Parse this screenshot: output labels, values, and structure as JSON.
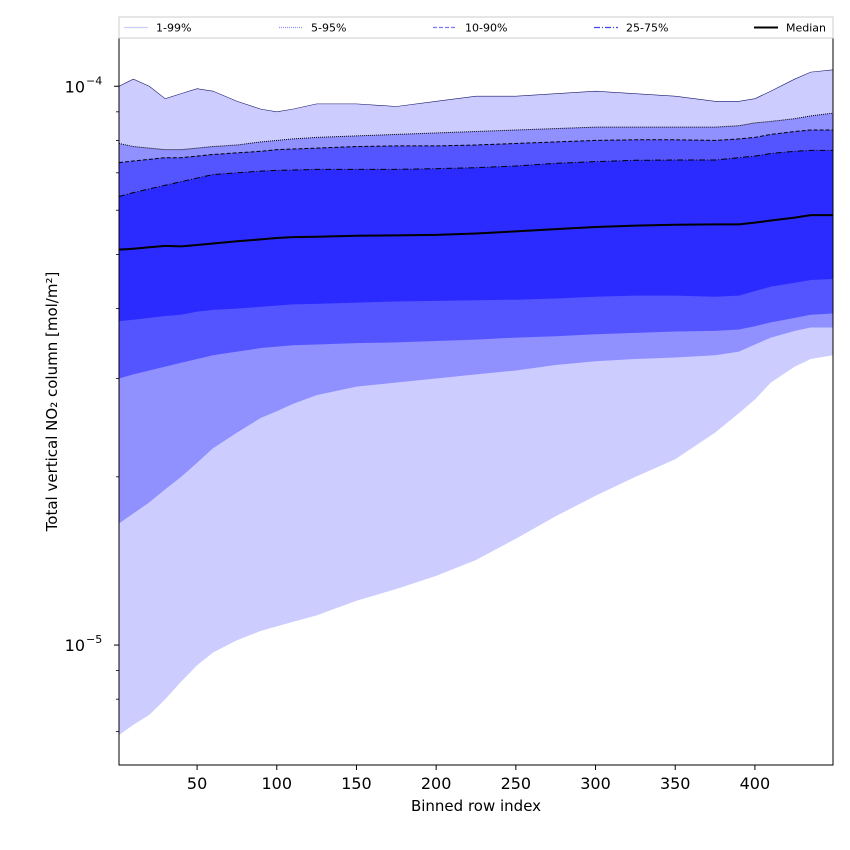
{
  "chart_data": {
    "type": "area",
    "xlabel": "Binned row index",
    "ylabel": "Total vertical NO₂ column [mol/m²]",
    "xlim": [
      1,
      449
    ],
    "ylim": [
      6.1e-06,
      0.000122
    ],
    "yscale": "log",
    "xticks": [
      50,
      100,
      150,
      200,
      250,
      300,
      350,
      400
    ],
    "yticks": [
      {
        "value": 1e-05,
        "base": "10",
        "exp": "−5"
      },
      {
        "value": 0.0001,
        "base": "10",
        "exp": "−4"
      }
    ],
    "legend": {
      "placement": "top",
      "entries": [
        {
          "label": "1-99%",
          "color": "#ccccff",
          "style": "solid"
        },
        {
          "label": "5-95%",
          "color": "#9090ff",
          "style": "dotted"
        },
        {
          "label": "10-90%",
          "color": "#7a7aff",
          "style": "dashed"
        },
        {
          "label": "25-75%",
          "color": "#4444ee",
          "style": "dashdot"
        },
        {
          "label": "Median",
          "color": "#000000",
          "style": "solid-thick"
        }
      ]
    },
    "x": [
      1,
      10,
      20,
      30,
      40,
      50,
      60,
      75,
      90,
      100,
      110,
      125,
      150,
      175,
      200,
      225,
      250,
      275,
      300,
      325,
      350,
      375,
      390,
      400,
      410,
      425,
      435,
      449
    ],
    "bands": [
      {
        "name": "1-99%",
        "color": "#ccccff",
        "lower": [
          6.9e-06,
          7.2e-06,
          7.5e-06,
          8e-06,
          8.6e-06,
          9.2e-06,
          9.7e-06,
          1.02e-05,
          1.06e-05,
          1.08e-05,
          1.1e-05,
          1.13e-05,
          1.2e-05,
          1.26e-05,
          1.33e-05,
          1.42e-05,
          1.55e-05,
          1.7e-05,
          1.85e-05,
          2e-05,
          2.15e-05,
          2.4e-05,
          2.6e-05,
          2.75e-05,
          2.95e-05,
          3.15e-05,
          3.25e-05,
          3.3e-05
        ],
        "upper": [
          0.0001,
          0.000103,
          0.0001,
          9.5e-05,
          9.7e-05,
          9.9e-05,
          9.8e-05,
          9.4e-05,
          9.1e-05,
          9e-05,
          9.1e-05,
          9.3e-05,
          9.3e-05,
          9.2e-05,
          9.4e-05,
          9.6e-05,
          9.6e-05,
          9.7e-05,
          9.8e-05,
          9.7e-05,
          9.6e-05,
          9.4e-05,
          9.4e-05,
          9.5e-05,
          9.8e-05,
          0.000103,
          0.000106,
          0.000107
        ]
      },
      {
        "name": "5-95%",
        "color": "#9090ff",
        "lower": [
          1.65e-05,
          1.72e-05,
          1.8e-05,
          1.9e-05,
          2e-05,
          2.12e-05,
          2.25e-05,
          2.4e-05,
          2.55e-05,
          2.62e-05,
          2.7e-05,
          2.8e-05,
          2.9e-05,
          2.95e-05,
          3e-05,
          3.05e-05,
          3.1e-05,
          3.17e-05,
          3.22e-05,
          3.25e-05,
          3.27e-05,
          3.3e-05,
          3.35e-05,
          3.45e-05,
          3.55e-05,
          3.65e-05,
          3.7e-05,
          3.7e-05
        ],
        "upper": [
          7.9e-05,
          7.8e-05,
          7.75e-05,
          7.7e-05,
          7.7e-05,
          7.75e-05,
          7.8e-05,
          7.85e-05,
          7.95e-05,
          8e-05,
          8.05e-05,
          8.1e-05,
          8.15e-05,
          8.2e-05,
          8.25e-05,
          8.3e-05,
          8.35e-05,
          8.4e-05,
          8.45e-05,
          8.45e-05,
          8.45e-05,
          8.45e-05,
          8.5e-05,
          8.6e-05,
          8.65e-05,
          8.75e-05,
          8.85e-05,
          8.95e-05
        ]
      },
      {
        "name": "10-90%",
        "color": "#5555ff",
        "lower": [
          3e-05,
          3.05e-05,
          3.1e-05,
          3.15e-05,
          3.2e-05,
          3.25e-05,
          3.3e-05,
          3.35e-05,
          3.4e-05,
          3.42e-05,
          3.44e-05,
          3.45e-05,
          3.47e-05,
          3.48e-05,
          3.5e-05,
          3.52e-05,
          3.55e-05,
          3.57e-05,
          3.6e-05,
          3.62e-05,
          3.64e-05,
          3.65e-05,
          3.67e-05,
          3.72e-05,
          3.78e-05,
          3.85e-05,
          3.9e-05,
          3.92e-05
        ],
        "upper": [
          7.3e-05,
          7.35e-05,
          7.4e-05,
          7.45e-05,
          7.45e-05,
          7.5e-05,
          7.55e-05,
          7.6e-05,
          7.65e-05,
          7.7e-05,
          7.72e-05,
          7.75e-05,
          7.8e-05,
          7.82e-05,
          7.82e-05,
          7.85e-05,
          7.9e-05,
          7.95e-05,
          8e-05,
          8.02e-05,
          8.02e-05,
          8e-05,
          8.05e-05,
          8.1e-05,
          8.2e-05,
          8.3e-05,
          8.35e-05,
          8.35e-05
        ]
      },
      {
        "name": "25-75%",
        "color": "#2b2bff",
        "lower": [
          3.8e-05,
          3.82e-05,
          3.85e-05,
          3.88e-05,
          3.9e-05,
          3.95e-05,
          3.98e-05,
          4e-05,
          4.03e-05,
          4.05e-05,
          4.07e-05,
          4.08e-05,
          4.1e-05,
          4.12e-05,
          4.13e-05,
          4.14e-05,
          4.15e-05,
          4.17e-05,
          4.2e-05,
          4.22e-05,
          4.22e-05,
          4.2e-05,
          4.22e-05,
          4.3e-05,
          4.38e-05,
          4.45e-05,
          4.5e-05,
          4.52e-05
        ],
        "upper": [
          6.35e-05,
          6.45e-05,
          6.55e-05,
          6.65e-05,
          6.75e-05,
          6.85e-05,
          6.95e-05,
          7e-05,
          7.05e-05,
          7.07e-05,
          7.08e-05,
          7.1e-05,
          7.1e-05,
          7.1e-05,
          7.12e-05,
          7.15e-05,
          7.2e-05,
          7.28e-05,
          7.33e-05,
          7.37e-05,
          7.38e-05,
          7.38e-05,
          7.45e-05,
          7.5e-05,
          7.58e-05,
          7.65e-05,
          7.68e-05,
          7.68e-05
        ]
      }
    ],
    "median": {
      "name": "Median",
      "color": "#000000",
      "values": [
        5.1e-05,
        5.12e-05,
        5.15e-05,
        5.18e-05,
        5.17e-05,
        5.2e-05,
        5.23e-05,
        5.28e-05,
        5.32e-05,
        5.35e-05,
        5.37e-05,
        5.38e-05,
        5.4e-05,
        5.41e-05,
        5.42e-05,
        5.45e-05,
        5.5e-05,
        5.55e-05,
        5.6e-05,
        5.63e-05,
        5.65e-05,
        5.66e-05,
        5.66e-05,
        5.7e-05,
        5.75e-05,
        5.82e-05,
        5.88e-05,
        5.88e-05
      ]
    }
  }
}
